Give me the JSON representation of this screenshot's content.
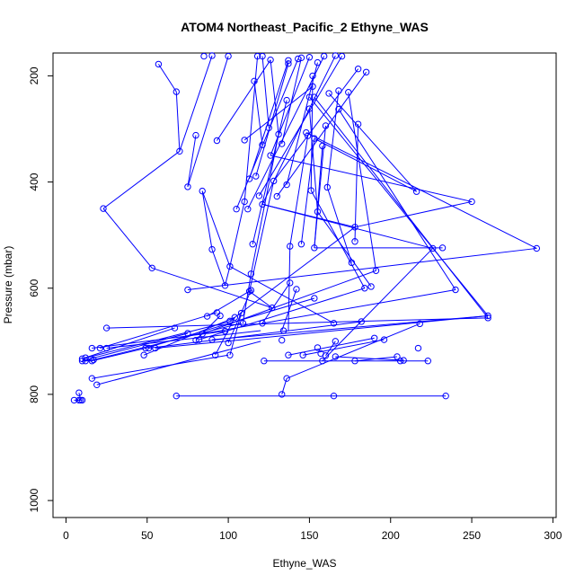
{
  "chart_data": {
    "type": "scatter",
    "title": "ATOM4 Northeast_Pacific_2 Ethyne_WAS",
    "xlabel": "Ethyne_WAS",
    "ylabel": "Pressure (mbar)",
    "xlim": [
      -8,
      302
    ],
    "ylim": [
      1032,
      157
    ],
    "y_reversed": true,
    "x_ticks": [
      "0",
      "50",
      "100",
      "150",
      "200",
      "250",
      "300"
    ],
    "y_ticks": [
      "200",
      "400",
      "600",
      "800",
      "1000"
    ],
    "grid": false,
    "legend": "none",
    "series_color": "#0000ff",
    "points": [
      [
        234,
        803
      ],
      [
        165,
        803
      ],
      [
        133,
        800
      ],
      [
        68,
        803
      ],
      [
        5,
        811
      ],
      [
        8,
        811
      ],
      [
        9,
        811
      ],
      [
        10,
        811
      ],
      [
        8,
        797
      ],
      [
        19,
        782
      ],
      [
        16,
        770
      ],
      [
        136,
        770
      ],
      [
        178,
        737
      ],
      [
        206,
        737
      ],
      [
        223,
        737
      ],
      [
        158,
        737
      ],
      [
        122,
        737
      ],
      [
        10,
        737
      ],
      [
        12,
        737
      ],
      [
        16,
        737
      ],
      [
        17,
        735
      ],
      [
        10,
        733
      ],
      [
        12,
        731
      ],
      [
        48,
        726
      ],
      [
        92,
        726
      ],
      [
        101,
        726
      ],
      [
        137,
        726
      ],
      [
        146,
        726
      ],
      [
        160,
        727
      ],
      [
        166,
        729
      ],
      [
        204,
        729
      ],
      [
        208,
        736
      ],
      [
        16,
        713
      ],
      [
        21,
        713
      ],
      [
        25,
        713
      ],
      [
        49,
        713
      ],
      [
        51,
        713
      ],
      [
        55,
        713
      ],
      [
        155,
        712
      ],
      [
        217,
        713
      ],
      [
        100,
        703
      ],
      [
        133,
        698
      ],
      [
        157,
        723
      ],
      [
        166,
        700
      ],
      [
        190,
        694
      ],
      [
        196,
        697
      ],
      [
        80,
        698
      ],
      [
        82,
        697
      ],
      [
        84,
        686
      ],
      [
        90,
        697
      ],
      [
        75,
        685
      ],
      [
        134,
        680
      ],
      [
        67,
        675
      ],
      [
        98,
        681
      ],
      [
        25,
        675
      ],
      [
        101,
        662
      ],
      [
        109,
        666
      ],
      [
        121,
        666
      ],
      [
        165,
        666
      ],
      [
        182,
        663
      ],
      [
        218,
        667
      ],
      [
        260,
        656
      ],
      [
        260,
        652
      ],
      [
        104,
        655
      ],
      [
        108,
        647
      ],
      [
        95,
        652
      ],
      [
        87,
        653
      ],
      [
        93,
        646
      ],
      [
        127,
        637
      ],
      [
        153,
        619
      ],
      [
        113,
        606
      ],
      [
        114,
        604
      ],
      [
        75,
        603
      ],
      [
        142,
        602
      ],
      [
        184,
        600
      ],
      [
        188,
        597
      ],
      [
        240,
        603
      ],
      [
        98,
        595
      ],
      [
        138,
        590
      ],
      [
        114,
        573
      ],
      [
        101,
        559
      ],
      [
        53,
        562
      ],
      [
        191,
        567
      ],
      [
        176,
        552
      ],
      [
        290,
        525
      ],
      [
        226,
        525
      ],
      [
        232,
        524
      ],
      [
        145,
        517
      ],
      [
        138,
        521
      ],
      [
        90,
        527
      ],
      [
        115,
        517
      ],
      [
        153,
        524
      ],
      [
        178,
        512
      ],
      [
        178,
        485
      ],
      [
        250,
        437
      ],
      [
        216,
        418
      ],
      [
        151,
        416
      ],
      [
        155,
        456
      ],
      [
        161,
        410
      ],
      [
        112,
        451
      ],
      [
        105,
        451
      ],
      [
        121,
        442
      ],
      [
        130,
        427
      ],
      [
        119,
        426
      ],
      [
        110,
        437
      ],
      [
        136,
        405
      ],
      [
        128,
        398
      ],
      [
        75,
        409
      ],
      [
        84,
        417
      ],
      [
        23,
        450
      ],
      [
        70,
        342
      ],
      [
        80,
        312
      ],
      [
        93,
        322
      ],
      [
        110,
        321
      ],
      [
        113,
        394
      ],
      [
        117,
        389
      ],
      [
        126,
        350
      ],
      [
        133,
        328
      ],
      [
        131,
        310
      ],
      [
        121,
        330
      ],
      [
        125,
        298
      ],
      [
        149,
        313
      ],
      [
        153,
        318
      ],
      [
        158,
        332
      ],
      [
        160,
        294
      ],
      [
        180,
        291
      ],
      [
        168,
        263
      ],
      [
        168,
        228
      ],
      [
        150,
        262
      ],
      [
        153,
        240
      ],
      [
        162,
        233
      ],
      [
        174,
        231
      ],
      [
        136,
        246
      ],
      [
        152,
        220
      ],
      [
        152,
        200
      ],
      [
        116,
        210
      ],
      [
        118,
        163
      ],
      [
        121,
        163
      ],
      [
        137,
        171
      ],
      [
        137,
        177
      ],
      [
        143,
        168
      ],
      [
        159,
        163
      ],
      [
        166,
        162
      ],
      [
        170,
        163
      ],
      [
        180,
        187
      ],
      [
        185,
        193
      ],
      [
        155,
        175
      ],
      [
        150,
        165
      ],
      [
        145,
        166
      ],
      [
        126,
        170
      ],
      [
        100,
        163
      ],
      [
        85,
        163
      ],
      [
        57,
        178
      ],
      [
        68,
        230
      ],
      [
        90,
        162
      ],
      [
        150,
        240
      ],
      [
        148,
        307
      ]
    ],
    "segments": [
      [
        [
          68,
          803
        ],
        [
          234,
          803
        ]
      ],
      [
        [
          133,
          800
        ],
        [
          136,
          770
        ]
      ],
      [
        [
          8,
          797
        ],
        [
          9,
          811
        ]
      ],
      [
        [
          19,
          782
        ],
        [
          120,
          700
        ]
      ],
      [
        [
          16,
          770
        ],
        [
          100,
          726
        ]
      ],
      [
        [
          10,
          737
        ],
        [
          75,
          685
        ]
      ],
      [
        [
          12,
          731
        ],
        [
          67,
          675
        ]
      ],
      [
        [
          17,
          735
        ],
        [
          108,
          666
        ]
      ],
      [
        [
          10,
          733
        ],
        [
          102,
          662
        ]
      ],
      [
        [
          25,
          675
        ],
        [
          260,
          656
        ]
      ],
      [
        [
          25,
          713
        ],
        [
          120,
          680
        ]
      ],
      [
        [
          48,
          726
        ],
        [
          104,
          655
        ]
      ],
      [
        [
          55,
          713
        ],
        [
          260,
          652
        ]
      ],
      [
        [
          16,
          713
        ],
        [
          98,
          681
        ]
      ],
      [
        [
          51,
          713
        ],
        [
          182,
          663
        ]
      ],
      [
        [
          21,
          713
        ],
        [
          93,
          646
        ]
      ],
      [
        [
          49,
          713
        ],
        [
          153,
          619
        ]
      ],
      [
        [
          136,
          770
        ],
        [
          218,
          667
        ]
      ],
      [
        [
          122,
          737
        ],
        [
          223,
          737
        ]
      ],
      [
        [
          137,
          726
        ],
        [
          190,
          694
        ]
      ],
      [
        [
          146,
          726
        ],
        [
          196,
          697
        ]
      ],
      [
        [
          160,
          727
        ],
        [
          166,
          700
        ]
      ],
      [
        [
          166,
          729
        ],
        [
          208,
          736
        ]
      ],
      [
        [
          178,
          737
        ],
        [
          204,
          729
        ]
      ],
      [
        [
          158,
          737
        ],
        [
          226,
          525
        ]
      ],
      [
        [
          75,
          603
        ],
        [
          290,
          525
        ]
      ],
      [
        [
          90,
          697
        ],
        [
          260,
          652
        ]
      ],
      [
        [
          84,
          686
        ],
        [
          240,
          603
        ]
      ],
      [
        [
          84,
          686
        ],
        [
          191,
          567
        ]
      ],
      [
        [
          82,
          697
        ],
        [
          184,
          600
        ]
      ],
      [
        [
          101,
          662
        ],
        [
          178,
          485
        ]
      ],
      [
        [
          121,
          666
        ],
        [
          138,
          590
        ]
      ],
      [
        [
          133,
          680
        ],
        [
          142,
          602
        ]
      ],
      [
        [
          109,
          666
        ],
        [
          114,
          573
        ]
      ],
      [
        [
          165,
          666
        ],
        [
          101,
          559
        ]
      ],
      [
        [
          87,
          653
        ],
        [
          114,
          604
        ]
      ],
      [
        [
          127,
          637
        ],
        [
          113,
          606
        ]
      ],
      [
        [
          53,
          562
        ],
        [
          127,
          637
        ]
      ],
      [
        [
          23,
          450
        ],
        [
          53,
          562
        ]
      ],
      [
        [
          23,
          450
        ],
        [
          70,
          342
        ]
      ],
      [
        [
          57,
          178
        ],
        [
          68,
          230
        ]
      ],
      [
        [
          68,
          230
        ],
        [
          70,
          342
        ]
      ],
      [
        [
          70,
          342
        ],
        [
          90,
          162
        ]
      ],
      [
        [
          80,
          312
        ],
        [
          75,
          409
        ]
      ],
      [
        [
          75,
          409
        ],
        [
          100,
          163
        ]
      ],
      [
        [
          84,
          417
        ],
        [
          101,
          559
        ]
      ],
      [
        [
          90,
          527
        ],
        [
          98,
          595
        ]
      ],
      [
        [
          90,
          527
        ],
        [
          84,
          417
        ]
      ],
      [
        [
          98,
          595
        ],
        [
          101,
          559
        ]
      ],
      [
        [
          101,
          559
        ],
        [
          110,
          437
        ]
      ],
      [
        [
          110,
          437
        ],
        [
          118,
          163
        ]
      ],
      [
        [
          113,
          394
        ],
        [
          137,
          171
        ]
      ],
      [
        [
          117,
          389
        ],
        [
          137,
          177
        ]
      ],
      [
        [
          105,
          451
        ],
        [
          143,
          168
        ]
      ],
      [
        [
          112,
          451
        ],
        [
          159,
          163
        ]
      ],
      [
        [
          121,
          442
        ],
        [
          166,
          162
        ]
      ],
      [
        [
          119,
          426
        ],
        [
          170,
          163
        ]
      ],
      [
        [
          128,
          398
        ],
        [
          180,
          187
        ]
      ],
      [
        [
          130,
          427
        ],
        [
          185,
          193
        ]
      ],
      [
        [
          136,
          405
        ],
        [
          155,
          175
        ]
      ],
      [
        [
          126,
          350
        ],
        [
          150,
          165
        ]
      ],
      [
        [
          133,
          328
        ],
        [
          145,
          166
        ]
      ],
      [
        [
          131,
          310
        ],
        [
          126,
          170
        ]
      ],
      [
        [
          121,
          330
        ],
        [
          116,
          210
        ]
      ],
      [
        [
          125,
          298
        ],
        [
          121,
          163
        ]
      ],
      [
        [
          93,
          322
        ],
        [
          126,
          170
        ]
      ],
      [
        [
          110,
          321
        ],
        [
          152,
          220
        ]
      ],
      [
        [
          115,
          517
        ],
        [
          136,
          246
        ]
      ],
      [
        [
          137,
          680
        ],
        [
          138,
          521
        ]
      ],
      [
        [
          138,
          521
        ],
        [
          149,
          313
        ]
      ],
      [
        [
          145,
          517
        ],
        [
          153,
          318
        ]
      ],
      [
        [
          153,
          524
        ],
        [
          158,
          332
        ]
      ],
      [
        [
          153,
          524
        ],
        [
          160,
          294
        ]
      ],
      [
        [
          151,
          416
        ],
        [
          152,
          200
        ]
      ],
      [
        [
          155,
          456
        ],
        [
          150,
          262
        ]
      ],
      [
        [
          161,
          410
        ],
        [
          168,
          228
        ]
      ],
      [
        [
          178,
          512
        ],
        [
          180,
          291
        ]
      ],
      [
        [
          178,
          485
        ],
        [
          250,
          437
        ]
      ],
      [
        [
          178,
          485
        ],
        [
          121,
          442
        ]
      ],
      [
        [
          216,
          418
        ],
        [
          153,
          318
        ]
      ],
      [
        [
          216,
          418
        ],
        [
          162,
          233
        ]
      ],
      [
        [
          232,
          524
        ],
        [
          153,
          524
        ]
      ],
      [
        [
          226,
          525
        ],
        [
          121,
          442
        ]
      ],
      [
        [
          184,
          600
        ],
        [
          151,
          416
        ]
      ],
      [
        [
          188,
          597
        ],
        [
          155,
          456
        ]
      ],
      [
        [
          176,
          552
        ],
        [
          161,
          410
        ]
      ],
      [
        [
          191,
          567
        ],
        [
          174,
          231
        ]
      ],
      [
        [
          240,
          603
        ],
        [
          168,
          263
        ]
      ],
      [
        [
          260,
          656
        ],
        [
          153,
          240
        ]
      ],
      [
        [
          260,
          652
        ],
        [
          150,
          240
        ]
      ],
      [
        [
          290,
          525
        ],
        [
          148,
          307
        ]
      ],
      [
        [
          250,
          437
        ],
        [
          126,
          350
        ]
      ],
      [
        [
          114,
          573
        ],
        [
          131,
          310
        ]
      ],
      [
        [
          113,
          606
        ],
        [
          128,
          398
        ]
      ],
      [
        [
          92,
          726
        ],
        [
          104,
          655
        ]
      ],
      [
        [
          101,
          726
        ],
        [
          108,
          647
        ]
      ],
      [
        [
          100,
          703
        ],
        [
          114,
          604
        ]
      ],
      [
        [
          80,
          698
        ],
        [
          95,
          652
        ]
      ],
      [
        [
          10,
          737
        ],
        [
          17,
          735
        ]
      ],
      [
        [
          5,
          811
        ],
        [
          10,
          811
        ]
      ],
      [
        [
          12,
          737
        ],
        [
          16,
          737
        ]
      ],
      [
        [
          16,
          737
        ],
        [
          49,
          713
        ]
      ]
    ]
  }
}
